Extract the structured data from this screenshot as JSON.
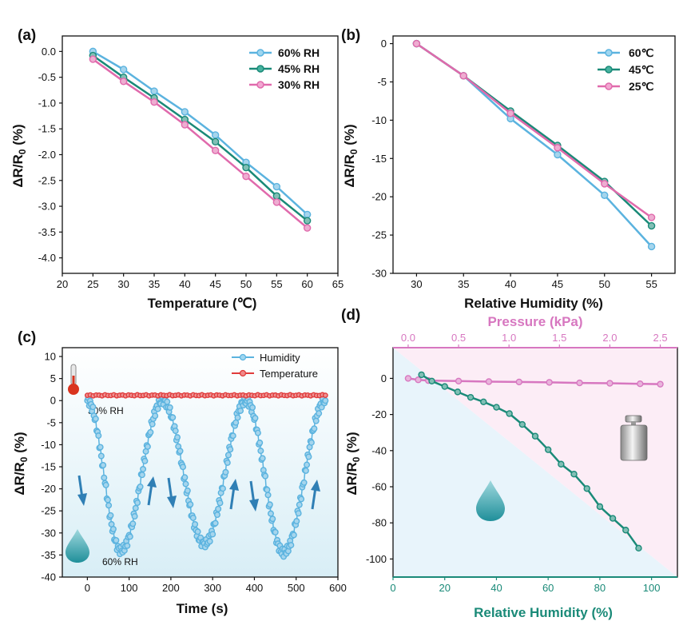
{
  "chart_data": [
    {
      "id": "a",
      "type": "line",
      "panel_label": "(a)",
      "xlabel": "Temperature (℃)",
      "ylabel": "ΔR/R0 (%)",
      "xlim": [
        20,
        65
      ],
      "ylim": [
        -4.3,
        0.3
      ],
      "xticks": [
        20,
        25,
        30,
        35,
        40,
        45,
        50,
        55,
        60,
        65
      ],
      "yticks": [
        0.0,
        -0.5,
        -1.0,
        -1.5,
        -2.0,
        -2.5,
        -3.0,
        -3.5,
        -4.0
      ],
      "x": [
        25,
        30,
        35,
        40,
        45,
        50,
        55,
        60
      ],
      "legend": "top-right",
      "series": [
        {
          "name": "60% RH",
          "color": "#5bb3df",
          "values": [
            0.0,
            -0.35,
            -0.77,
            -1.17,
            -1.62,
            -2.15,
            -2.62,
            -3.16
          ]
        },
        {
          "name": "45% RH",
          "color": "#1a8a78",
          "values": [
            -0.08,
            -0.5,
            -0.9,
            -1.32,
            -1.75,
            -2.25,
            -2.8,
            -3.28
          ]
        },
        {
          "name": "30% RH",
          "color": "#e06aac",
          "values": [
            -0.15,
            -0.58,
            -0.98,
            -1.42,
            -1.92,
            -2.42,
            -2.92,
            -3.42
          ]
        }
      ]
    },
    {
      "id": "b",
      "type": "line",
      "panel_label": "(b)",
      "xlabel": "Relative Humidity (%)",
      "ylabel": "ΔR/R0 (%)",
      "xlim": [
        27.5,
        57.5
      ],
      "ylim": [
        -30,
        1
      ],
      "xticks": [
        30,
        35,
        40,
        45,
        50,
        55
      ],
      "yticks": [
        0,
        -5,
        -10,
        -15,
        -20,
        -25,
        -30
      ],
      "x": [
        30,
        35,
        40,
        45,
        50,
        55
      ],
      "legend": "top-right",
      "series": [
        {
          "name": "60℃",
          "color": "#5bb3df",
          "values": [
            0,
            -4.2,
            -9.8,
            -14.5,
            -19.8,
            -26.5
          ]
        },
        {
          "name": "45℃",
          "color": "#1a8a78",
          "values": [
            0,
            -4.2,
            -8.8,
            -13.3,
            -18.0,
            -23.8
          ]
        },
        {
          "name": "25℃",
          "color": "#e06aac",
          "values": [
            0,
            -4.2,
            -9.1,
            -13.6,
            -18.3,
            -22.7
          ]
        }
      ]
    },
    {
      "id": "c",
      "type": "line",
      "panel_label": "(c)",
      "xlabel": "Time (s)",
      "ylabel": "ΔR/R0 (%)",
      "xlim": [
        -60,
        600
      ],
      "ylim": [
        -40,
        12
      ],
      "xticks": [
        0,
        100,
        200,
        300,
        400,
        500,
        600
      ],
      "yticks": [
        10,
        5,
        0,
        -5,
        -10,
        -15,
        -20,
        -25,
        -30,
        -35,
        -40
      ],
      "legend": "top-right",
      "annotations": [
        "30% RH",
        "60% RH"
      ],
      "series": [
        {
          "name": "Humidity",
          "color": "#5bb3df",
          "keypoints": [
            [
              0,
              0
            ],
            [
              80,
              -34
            ],
            [
              180,
              0
            ],
            [
              280,
              -32.5
            ],
            [
              380,
              0
            ],
            [
              470,
              -34.5
            ],
            [
              570,
              0
            ]
          ]
        },
        {
          "name": "Temperature",
          "color": "#e03b3b",
          "keypoints": [
            [
              0,
              1.2
            ],
            [
              570,
              1.2
            ]
          ]
        }
      ]
    },
    {
      "id": "d",
      "type": "line",
      "panel_label": "(d)",
      "xlabel": "Relative Humidity (%)",
      "x2label": "Pressure (kPa)",
      "ylabel": "ΔR/R0 (%)",
      "xlim": [
        0,
        110
      ],
      "x2lim": [
        -0.15,
        2.67
      ],
      "ylim": [
        -110,
        17
      ],
      "xticks": [
        0,
        20,
        40,
        60,
        80,
        100
      ],
      "x2ticks": [
        0.0,
        0.5,
        1.0,
        1.5,
        2.0,
        2.5
      ],
      "yticks": [
        0,
        -20,
        -40,
        -60,
        -80,
        -100
      ],
      "series": [
        {
          "name": "Humidity",
          "axis": "bottom",
          "color": "#1a8a78",
          "x": [
            11,
            15,
            20,
            25,
            30,
            35,
            40,
            45,
            50,
            55,
            60,
            65,
            70,
            75,
            80,
            85,
            90,
            95
          ],
          "values": [
            2,
            -1.5,
            -4.5,
            -7.5,
            -10.5,
            -13,
            -16,
            -19.5,
            -25.5,
            -32,
            -39.5,
            -47.5,
            -53,
            -61,
            -71,
            -77.5,
            -84,
            -94
          ]
        },
        {
          "name": "Pressure",
          "axis": "top",
          "color": "#d777c0",
          "x": [
            0.0,
            0.1,
            0.2,
            0.5,
            0.8,
            1.1,
            1.4,
            1.7,
            2.0,
            2.3,
            2.5
          ],
          "values": [
            0,
            -0.8,
            -1.2,
            -1.5,
            -1.8,
            -2.0,
            -2.2,
            -2.5,
            -2.7,
            -3.0,
            -3.2
          ]
        }
      ]
    }
  ]
}
